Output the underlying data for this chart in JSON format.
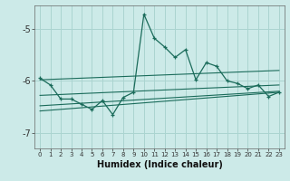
{
  "xlabel": "Humidex (Indice chaleur)",
  "bg_color": "#cceae8",
  "grid_color": "#aad4d0",
  "line_color": "#1a6b5a",
  "xlim": [
    -0.5,
    23.5
  ],
  "ylim": [
    -7.3,
    -4.55
  ],
  "yticks": [
    -7,
    -6,
    -5
  ],
  "xticks": [
    0,
    1,
    2,
    3,
    4,
    5,
    6,
    7,
    8,
    9,
    10,
    11,
    12,
    13,
    14,
    15,
    16,
    17,
    18,
    19,
    20,
    21,
    22,
    23
  ],
  "main_series_x": [
    0,
    1,
    2,
    3,
    4,
    5,
    6,
    7,
    8,
    9,
    10,
    11,
    12,
    13,
    14,
    15,
    16,
    17,
    18,
    19,
    20,
    21,
    22,
    23
  ],
  "main_series_y": [
    -5.95,
    -6.08,
    -6.35,
    -6.35,
    -6.45,
    -6.55,
    -6.38,
    -6.65,
    -6.32,
    -6.22,
    -4.72,
    -5.18,
    -5.35,
    -5.55,
    -5.4,
    -5.98,
    -5.65,
    -5.72,
    -6.0,
    -6.05,
    -6.15,
    -6.08,
    -6.3,
    -6.22
  ],
  "trend1_x": [
    0,
    23
  ],
  "trend1_y": [
    -5.98,
    -5.8
  ],
  "trend2_x": [
    0,
    23
  ],
  "trend2_y": [
    -6.28,
    -6.08
  ],
  "trend3_x": [
    0,
    23
  ],
  "trend3_y": [
    -6.48,
    -6.2
  ],
  "trend4_x": [
    0,
    23
  ],
  "trend4_y": [
    -6.58,
    -6.22
  ]
}
